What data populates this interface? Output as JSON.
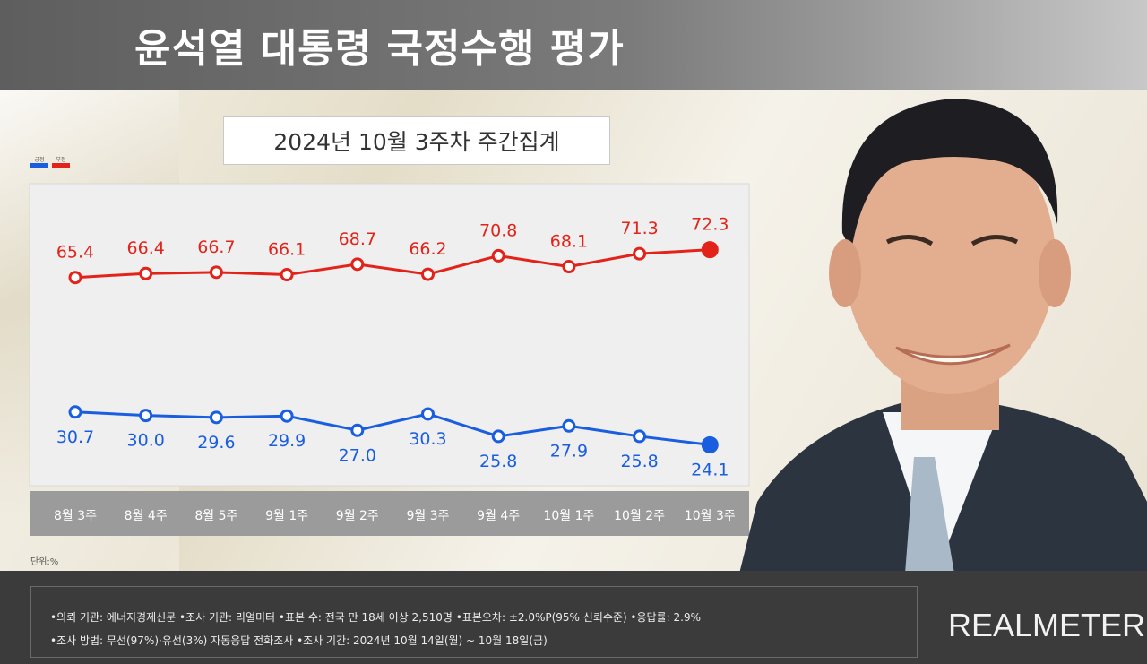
{
  "header": {
    "title": "윤석열 대통령 국정수행 평가"
  },
  "chart_data": {
    "type": "line",
    "subtitle": "2024년 10월 3주차 주간집계",
    "categories": [
      "8월 3주",
      "8월 4주",
      "8월 5주",
      "9월 1주",
      "9월 2주",
      "9월 3주",
      "9월 4주",
      "10월 1주",
      "10월 2주",
      "10월 3주"
    ],
    "series": [
      {
        "name": "부정",
        "color": "#e2231a",
        "values": [
          65.4,
          66.4,
          66.7,
          66.1,
          68.7,
          66.2,
          70.8,
          68.1,
          71.3,
          72.3
        ]
      },
      {
        "name": "긍정",
        "color": "#1a5ee0",
        "values": [
          30.7,
          30.0,
          29.6,
          29.9,
          27.0,
          30.3,
          25.8,
          27.9,
          25.8,
          24.1
        ]
      }
    ],
    "legend": {
      "position": "top-left"
    },
    "grid": false,
    "unit_label": "단위:%"
  },
  "legend": {
    "positive_label": "긍정",
    "negative_label": "부정"
  },
  "footer": {
    "line1": "•의뢰 기관: 에너지경제신문 •조사 기관: 리얼미터 •표본 수: 전국 만 18세 이상 2,510명 •표본오차: ±2.0%P(95% 신뢰수준) •응답률: 2.9%",
    "line2": "•조사 방법: 무선(97%)·유선(3%) 자동응답 전화조사 •조사 기간: 2024년 10월 14일(월) ~ 10월 18일(금)",
    "brand": "REALMETER"
  }
}
